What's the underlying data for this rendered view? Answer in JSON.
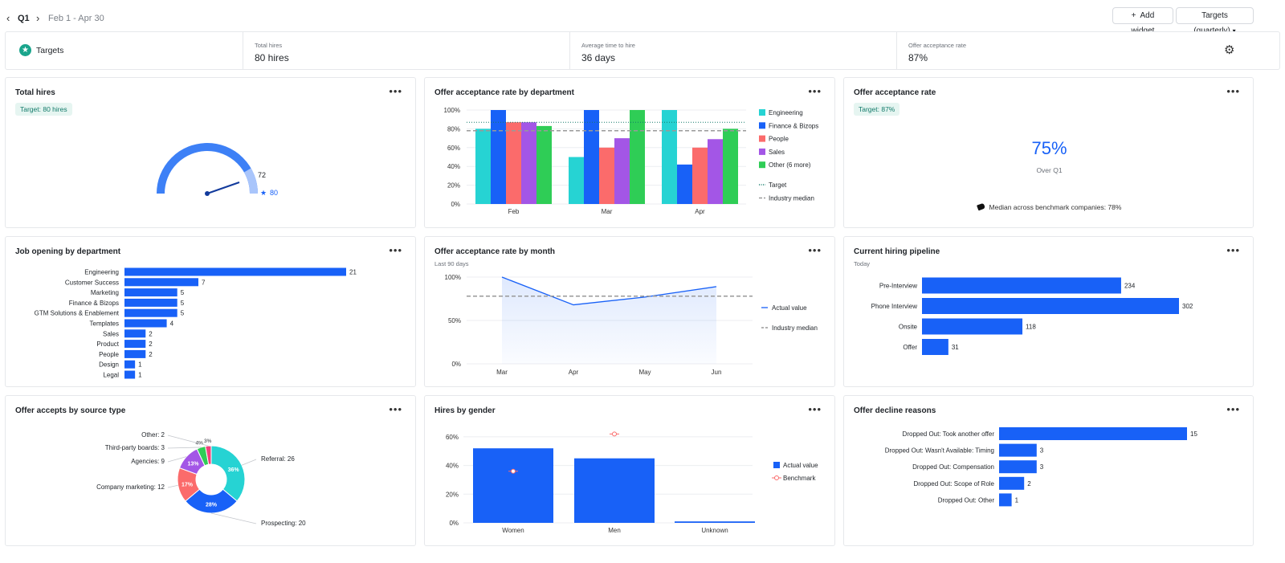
{
  "header": {
    "prev": "‹",
    "next": "›",
    "period": "Q1",
    "range": "Feb 1 - Apr 30",
    "add_widget": "Add widget",
    "plus": "+",
    "targets_select": "Targets (quarterly)",
    "caret": "▾"
  },
  "targets_bar": {
    "title": "Targets",
    "star": "★",
    "gear": "⚙",
    "metrics": [
      {
        "label": "Total hires",
        "value": "80 hires"
      },
      {
        "label": "Average time to hire",
        "value": "36 days"
      },
      {
        "label": "Offer acceptance rate",
        "value": "87%"
      }
    ]
  },
  "colors": {
    "blue": "#1861f7",
    "teal": "#26d3d3",
    "red": "#fb6b6b",
    "purple": "#a356e6",
    "green": "#2fcd56",
    "gauge_light": "#a9c5fb",
    "gauge_mid": "#3d80f6",
    "target_text": "#127a6a"
  },
  "cards": {
    "total_hires": {
      "title": "Total hires",
      "menu": "•••",
      "target": "Target: 80 hires",
      "gauge_value": "72",
      "gauge_target": "80",
      "gauge_star": "★",
      "value": 72,
      "target_value": 80
    },
    "offer_by_dept": {
      "title": "Offer acceptance rate by department",
      "menu": "•••"
    },
    "offer_rate": {
      "title": "Offer acceptance rate",
      "menu": "•••",
      "target": "Target: 87%",
      "big_value": "75%",
      "sub": "Over Q1",
      "median": "Median across benchmark companies: 78%"
    },
    "job_openings": {
      "title": "Job opening by department",
      "menu": "•••"
    },
    "offer_by_month": {
      "title": "Offer acceptance rate by month",
      "menu": "•••",
      "sub": "Last 90 days"
    },
    "pipeline": {
      "title": "Current hiring pipeline",
      "menu": "•••",
      "sub": "Today"
    },
    "source": {
      "title": "Offer accepts by source type",
      "menu": "•••"
    },
    "gender": {
      "title": "Hires by gender",
      "menu": "•••"
    },
    "decline": {
      "title": "Offer decline reasons",
      "menu": "•••"
    }
  },
  "chart_data": [
    {
      "id": "offer_by_dept",
      "type": "bar",
      "categories": [
        "Feb",
        "Mar",
        "Apr"
      ],
      "series": [
        {
          "name": "Engineering",
          "color": "#26d3d3",
          "values": [
            80,
            50,
            100
          ]
        },
        {
          "name": "Finance & Bizops",
          "color": "#1861f7",
          "values": [
            100,
            100,
            42
          ]
        },
        {
          "name": "People",
          "color": "#fb6b6b",
          "values": [
            87,
            60,
            60
          ]
        },
        {
          "name": "Sales",
          "color": "#a356e6",
          "values": [
            87,
            70,
            69
          ]
        },
        {
          "name": "Other (6 more)",
          "color": "#2fcd56",
          "values": [
            83,
            100,
            80
          ]
        }
      ],
      "reference_lines": [
        {
          "name": "Target",
          "value": 87,
          "style": "dotted",
          "color": "#127a6a"
        },
        {
          "name": "Industry median",
          "value": 78,
          "style": "dashed",
          "color": "#999999"
        }
      ],
      "yticks": [
        "100%",
        "80%",
        "60%",
        "40%",
        "20%",
        "0%"
      ],
      "ylim": [
        0,
        100
      ]
    },
    {
      "id": "job_openings",
      "type": "bar",
      "orientation": "horizontal",
      "categories": [
        "Engineering",
        "Customer Success",
        "Marketing",
        "Finance & Bizops",
        "GTM Solutions & Enablement",
        "Templates",
        "Sales",
        "Product",
        "People",
        "Design",
        "Legal"
      ],
      "values": [
        21,
        7,
        5,
        5,
        5,
        4,
        2,
        2,
        2,
        1,
        1
      ],
      "xlim": [
        0,
        21
      ]
    },
    {
      "id": "offer_by_month",
      "type": "line",
      "x": [
        "Mar",
        "Apr",
        "May",
        "Jun"
      ],
      "series": [
        {
          "name": "Actual value",
          "values": [
            100,
            68,
            77,
            89
          ]
        }
      ],
      "reference_lines": [
        {
          "name": "Industry median",
          "value": 78
        }
      ],
      "yticks": [
        "100%",
        "50%",
        "0%"
      ],
      "ylim": [
        0,
        100
      ]
    },
    {
      "id": "pipeline",
      "type": "bar",
      "orientation": "horizontal",
      "categories": [
        "Pre-Interview",
        "Phone Interview",
        "Onsite",
        "Offer"
      ],
      "values": [
        234,
        302,
        118,
        31
      ],
      "xlim": [
        0,
        302
      ]
    },
    {
      "id": "source",
      "type": "pie",
      "labels": [
        "Referral: 26",
        "Prospecting: 20",
        "Company marketing: 12",
        "Agencies: 9",
        "Third-party boards: 3",
        "Other: 2"
      ],
      "values": [
        26,
        20,
        12,
        9,
        3,
        2
      ],
      "percent_labels": [
        "36%",
        "28%",
        "17%",
        "13%",
        "4%",
        "3%"
      ],
      "colors": [
        "#26d3d3",
        "#1861f7",
        "#fb6b6b",
        "#a356e6",
        "#2fcd56",
        "#f0407a"
      ]
    },
    {
      "id": "gender",
      "type": "bar",
      "categories": [
        "Women",
        "Men",
        "Unknown"
      ],
      "series": [
        {
          "name": "Actual value",
          "values": [
            52,
            45,
            1
          ]
        },
        {
          "name": "Benchmark",
          "values": [
            36,
            62,
            null
          ]
        }
      ],
      "yticks": [
        "60%",
        "40%",
        "20%",
        "0%"
      ],
      "ylim": [
        0,
        65
      ]
    },
    {
      "id": "decline",
      "type": "bar",
      "orientation": "horizontal",
      "categories": [
        "Dropped Out: Took another offer",
        "Dropped Out: Wasn't Available: Timing",
        "Dropped Out: Compensation",
        "Dropped Out: Scope of Role",
        "Dropped Out: Other"
      ],
      "values": [
        15,
        3,
        3,
        2,
        1
      ],
      "xlim": [
        0,
        15
      ]
    }
  ]
}
